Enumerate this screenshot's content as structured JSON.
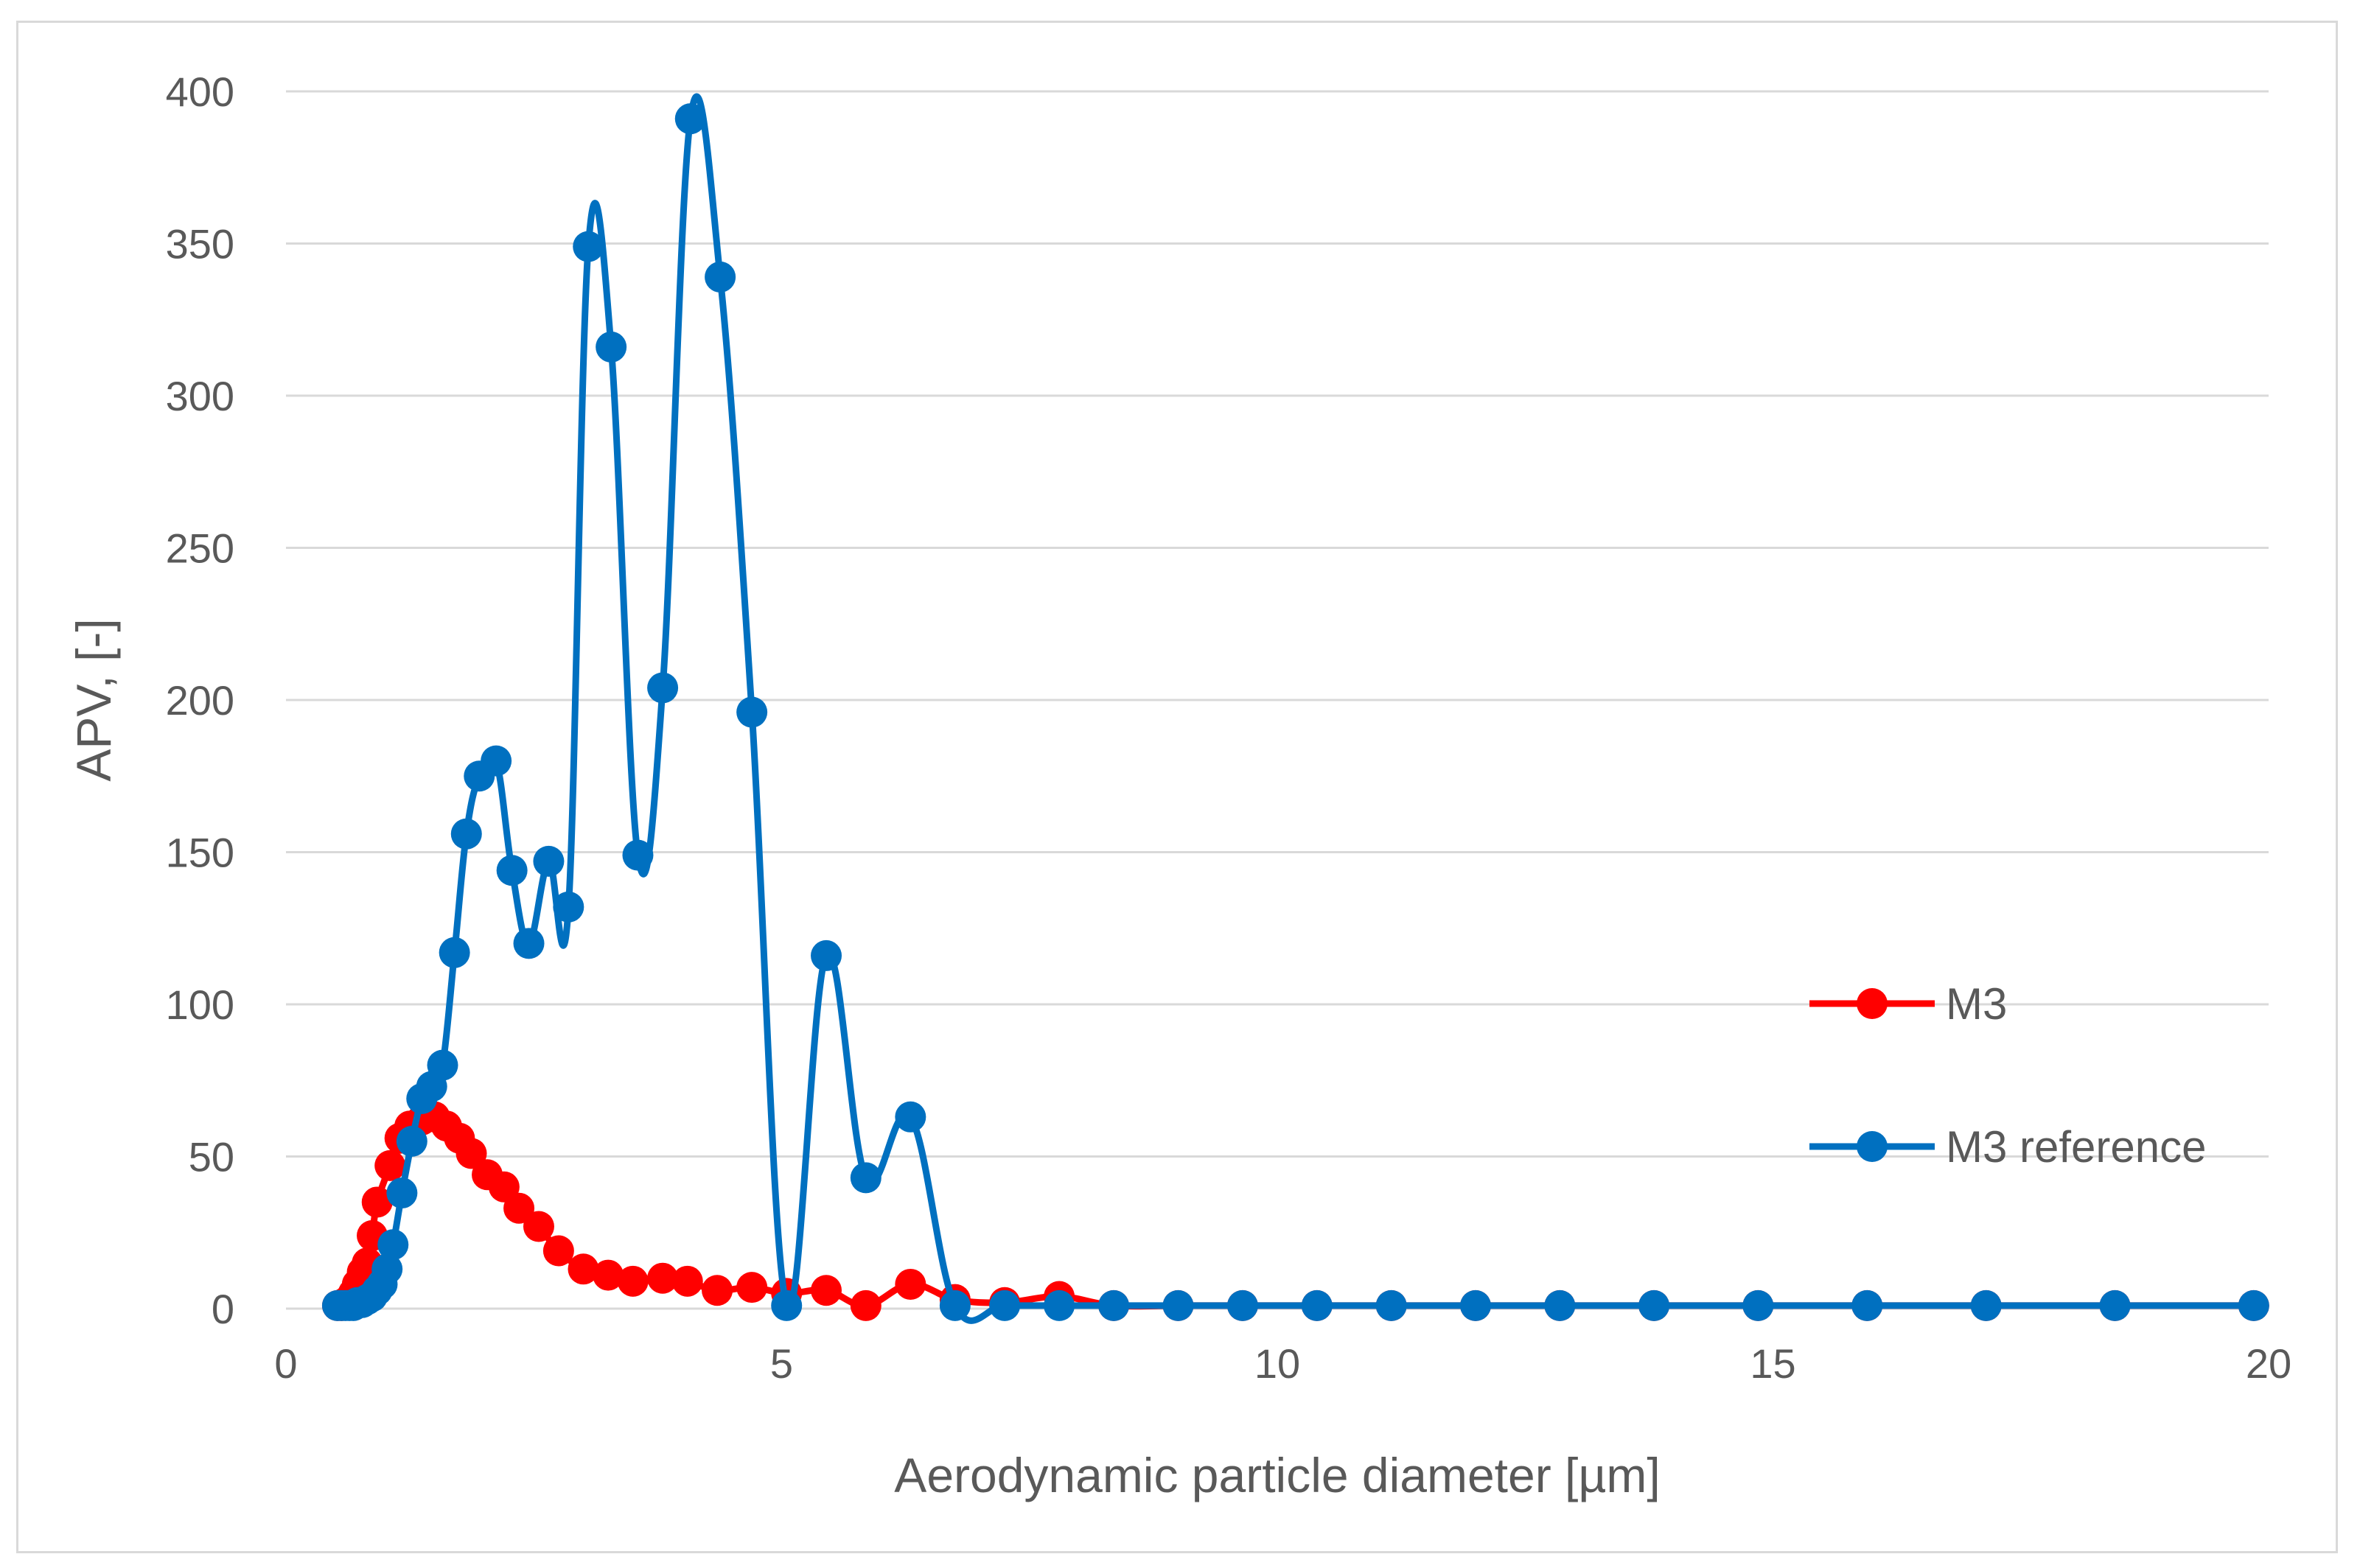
{
  "chart_data": {
    "type": "line",
    "title": "",
    "xlabel": "Aerodynamic particle diameter [µm]",
    "ylabel": "APV, [-]",
    "xlim": [
      0,
      20
    ],
    "ylim": [
      0,
      400
    ],
    "x_ticks": [
      "0",
      "5",
      "10",
      "15",
      "20"
    ],
    "y_ticks": [
      "0",
      "50",
      "100",
      "150",
      "200",
      "250",
      "300",
      "350",
      "400"
    ],
    "grid": "horizontal",
    "legend_position": "right",
    "series": [
      {
        "name": "M3",
        "color": "#ff0000",
        "points": [
          [
            0.52,
            1
          ],
          [
            0.56,
            1
          ],
          [
            0.6,
            2
          ],
          [
            0.64,
            3
          ],
          [
            0.68,
            5
          ],
          [
            0.72,
            8
          ],
          [
            0.77,
            12
          ],
          [
            0.82,
            15
          ],
          [
            0.87,
            24
          ],
          [
            0.92,
            35
          ],
          [
            1.05,
            47
          ],
          [
            1.15,
            56
          ],
          [
            1.25,
            60
          ],
          [
            1.37,
            62
          ],
          [
            1.5,
            63
          ],
          [
            1.62,
            60
          ],
          [
            1.75,
            56
          ],
          [
            1.87,
            51
          ],
          [
            2.03,
            44
          ],
          [
            2.2,
            40
          ],
          [
            2.35,
            33
          ],
          [
            2.55,
            27
          ],
          [
            2.75,
            19
          ],
          [
            3.0,
            13
          ],
          [
            3.25,
            11
          ],
          [
            3.5,
            9
          ],
          [
            3.8,
            10
          ],
          [
            4.05,
            9
          ],
          [
            4.35,
            6
          ],
          [
            4.7,
            7
          ],
          [
            5.05,
            5
          ],
          [
            5.45,
            6
          ],
          [
            5.85,
            1
          ],
          [
            6.3,
            8
          ],
          [
            6.75,
            3
          ],
          [
            7.25,
            2
          ],
          [
            7.8,
            4
          ],
          [
            8.35,
            1
          ],
          [
            9.0,
            1
          ],
          [
            9.65,
            1
          ],
          [
            10.4,
            1
          ],
          [
            11.15,
            1
          ],
          [
            12.0,
            1
          ],
          [
            12.85,
            1
          ],
          [
            13.8,
            1
          ],
          [
            14.85,
            1
          ],
          [
            15.95,
            1
          ],
          [
            17.15,
            1
          ],
          [
            18.45,
            1
          ],
          [
            19.85,
            1
          ]
        ]
      },
      {
        "name": "M3 reference",
        "color": "#0070c0",
        "points": [
          [
            0.52,
            1
          ],
          [
            0.56,
            1
          ],
          [
            0.6,
            1
          ],
          [
            0.64,
            1
          ],
          [
            0.68,
            1
          ],
          [
            0.72,
            2
          ],
          [
            0.77,
            2
          ],
          [
            0.82,
            3
          ],
          [
            0.87,
            4
          ],
          [
            0.92,
            6
          ],
          [
            0.97,
            8
          ],
          [
            1.02,
            13
          ],
          [
            1.08,
            21
          ],
          [
            1.17,
            38
          ],
          [
            1.27,
            55
          ],
          [
            1.37,
            69
          ],
          [
            1.47,
            73
          ],
          [
            1.58,
            80
          ],
          [
            1.7,
            117
          ],
          [
            1.82,
            156
          ],
          [
            1.95,
            175
          ],
          [
            2.12,
            180
          ],
          [
            2.28,
            144
          ],
          [
            2.45,
            120
          ],
          [
            2.65,
            147
          ],
          [
            2.85,
            132
          ],
          [
            3.05,
            349
          ],
          [
            3.28,
            316
          ],
          [
            3.55,
            149
          ],
          [
            3.8,
            204
          ],
          [
            4.08,
            391
          ],
          [
            4.38,
            339
          ],
          [
            4.7,
            196
          ],
          [
            5.05,
            1
          ],
          [
            5.45,
            116
          ],
          [
            5.85,
            43
          ],
          [
            6.3,
            63
          ],
          [
            6.75,
            1
          ],
          [
            7.25,
            1
          ],
          [
            7.8,
            1
          ],
          [
            8.35,
            1
          ],
          [
            9.0,
            1
          ],
          [
            9.65,
            1
          ],
          [
            10.4,
            1
          ],
          [
            11.15,
            1
          ],
          [
            12.0,
            1
          ],
          [
            12.85,
            1
          ],
          [
            13.8,
            1
          ],
          [
            14.85,
            1
          ],
          [
            15.95,
            1
          ],
          [
            17.15,
            1
          ],
          [
            18.45,
            1
          ],
          [
            19.85,
            1
          ]
        ]
      }
    ]
  }
}
